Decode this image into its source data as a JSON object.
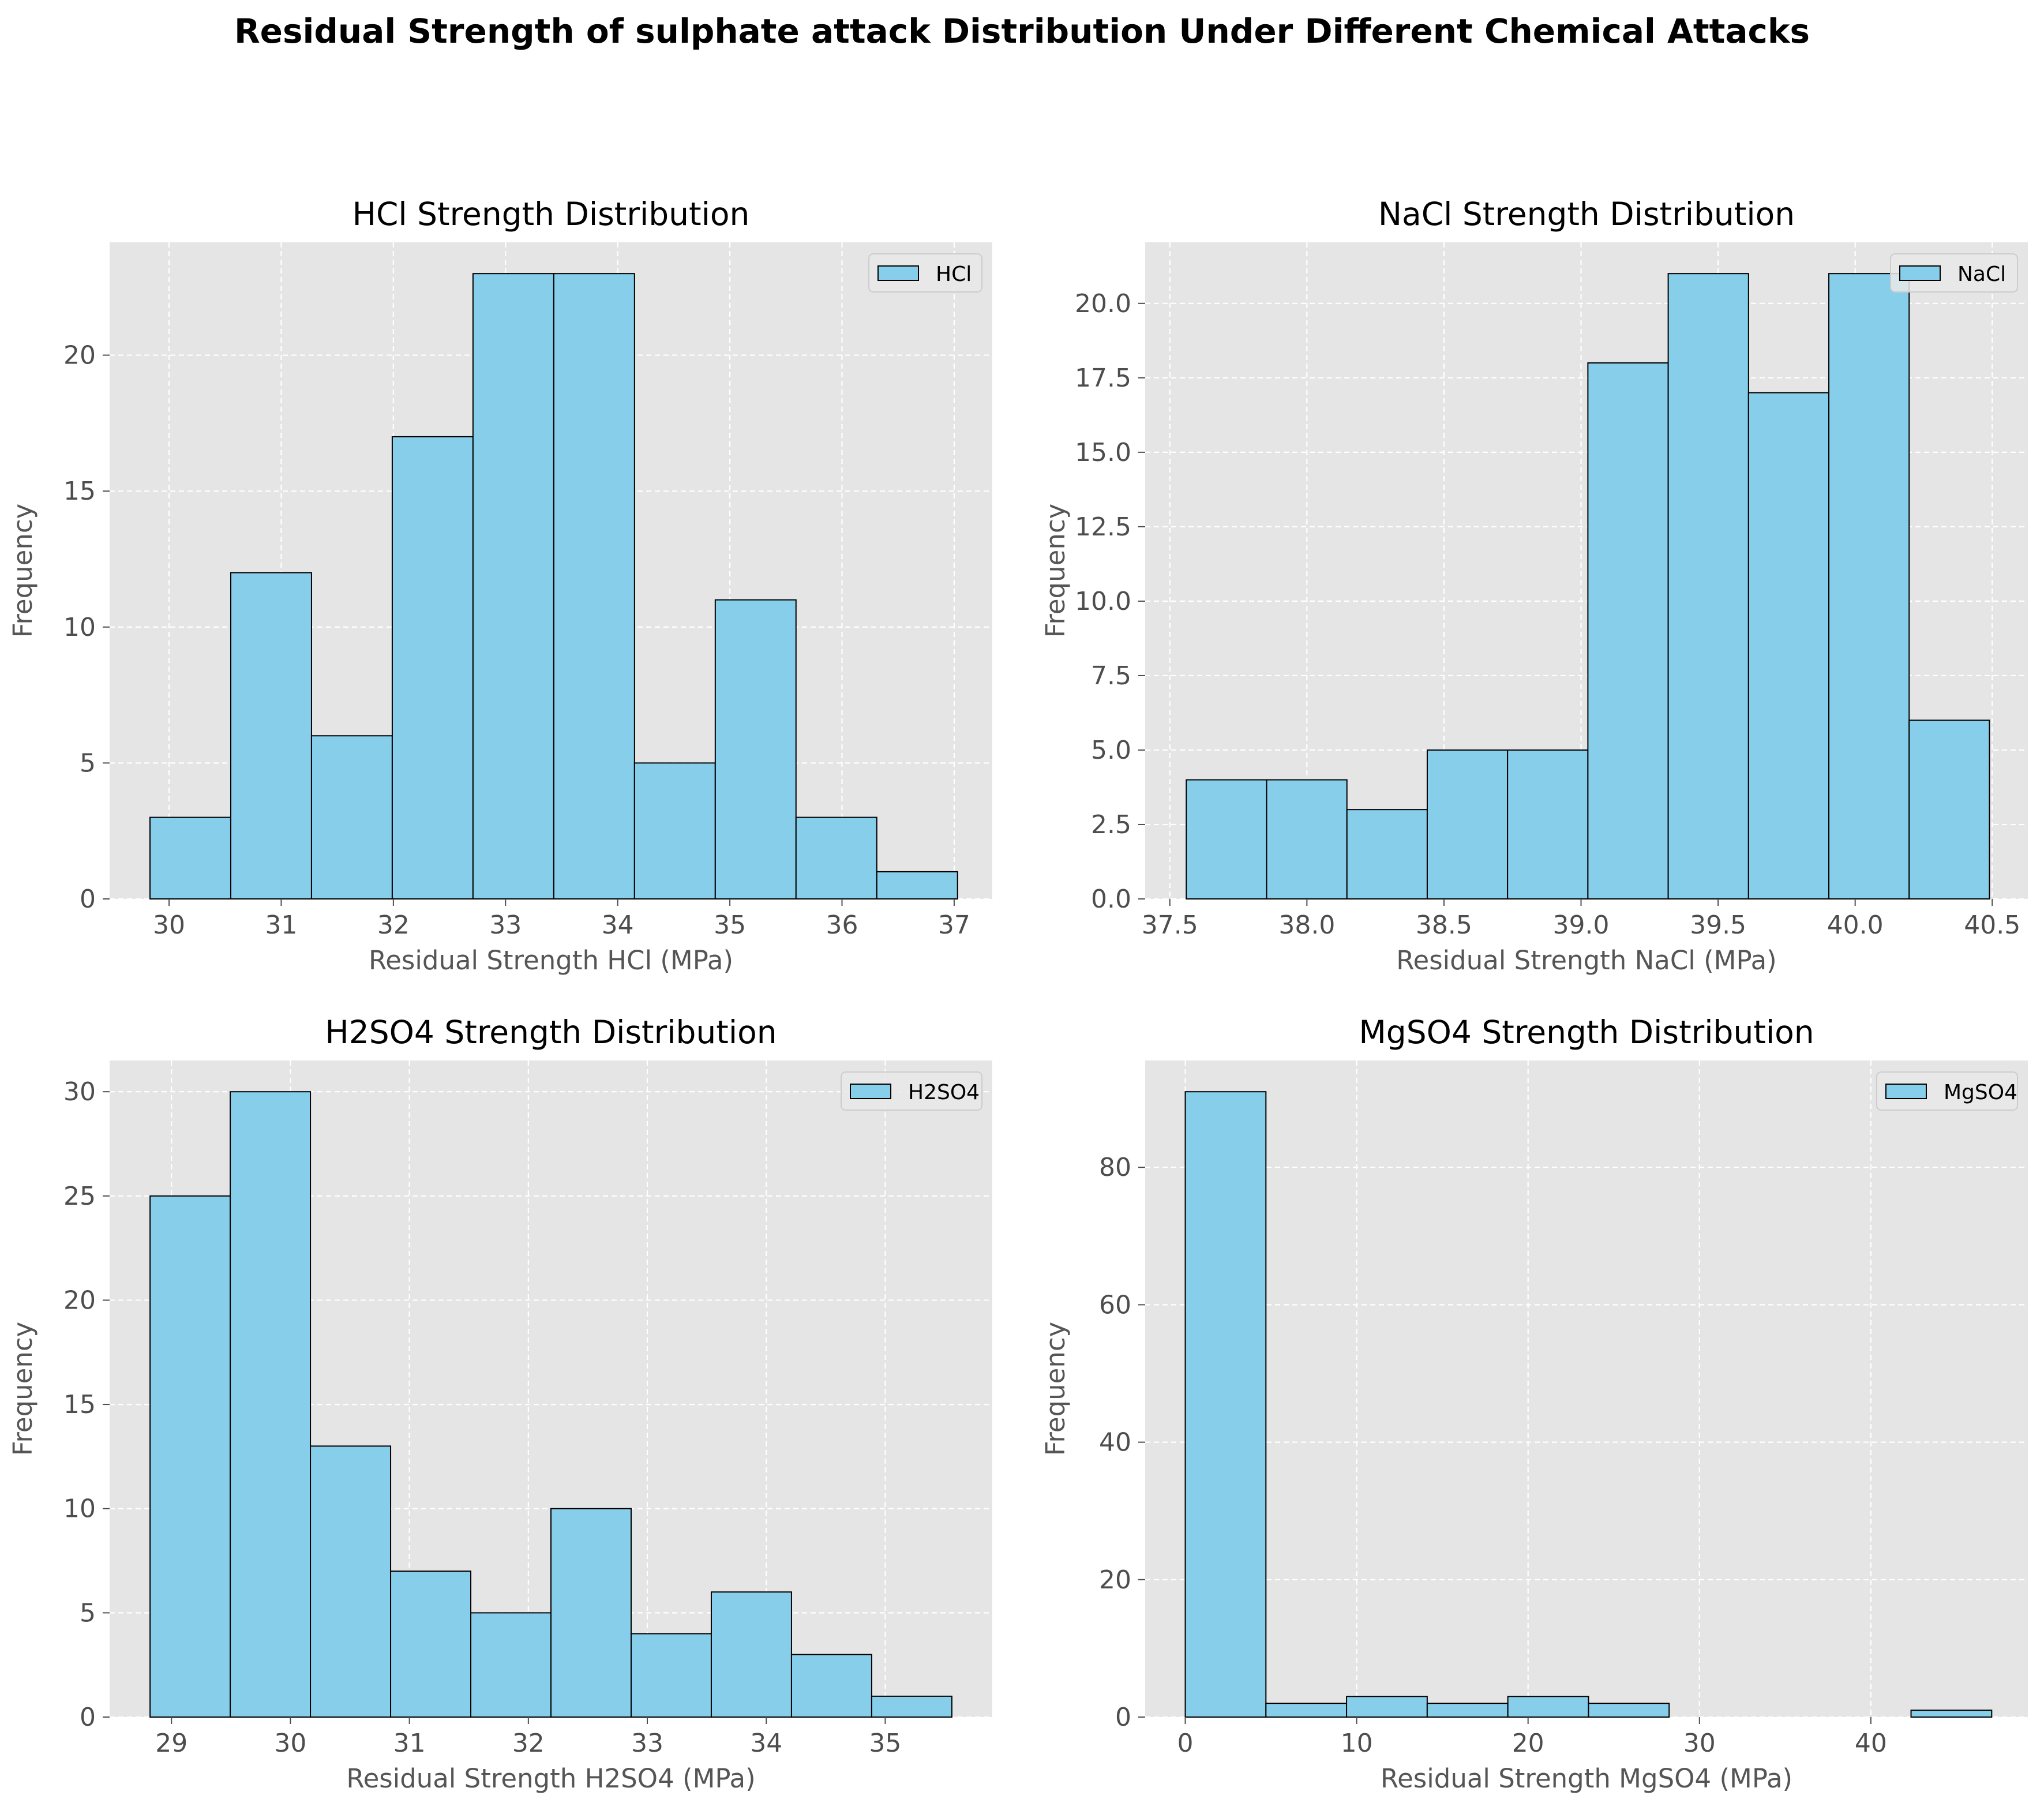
{
  "figure": {
    "title": "Residual Strength of sulphate attack Distribution Under Different Chemical Attacks"
  },
  "colors": {
    "bar_fill": "#87CEEB",
    "bar_edge": "#000000",
    "axes_bg": "#E5E5E5",
    "grid": "#FFFFFF"
  },
  "chart_data": [
    {
      "type": "bar",
      "subtype": "histogram",
      "title": "HCl Strength Distribution",
      "xlabel": "Residual Strength HCl (MPa)",
      "ylabel": "Frequency",
      "legend": [
        "HCl"
      ],
      "legend_position": "top-right",
      "grid": true,
      "xlim": [
        29.47,
        37.34
      ],
      "ylim": [
        0,
        24.15
      ],
      "xticks": [
        30,
        31,
        32,
        33,
        34,
        35,
        36,
        37
      ],
      "yticks": [
        0,
        5,
        10,
        15,
        20
      ],
      "bin_edges": [
        29.83,
        30.55,
        31.27,
        31.99,
        32.71,
        33.43,
        34.15,
        34.87,
        35.59,
        36.31,
        37.03
      ],
      "counts": [
        3,
        12,
        6,
        17,
        23,
        23,
        5,
        11,
        3,
        1
      ]
    },
    {
      "type": "bar",
      "subtype": "histogram",
      "title": "NaCl Strength Distribution",
      "xlabel": "Residual Strength NaCl (MPa)",
      "ylabel": "Frequency",
      "legend": [
        "NaCl"
      ],
      "legend_position": "top-right",
      "grid": true,
      "xlim": [
        37.41,
        40.63
      ],
      "ylim": [
        0,
        22.05
      ],
      "xticks": [
        37.5,
        38.0,
        38.5,
        39.0,
        39.5,
        40.0,
        40.5
      ],
      "yticks": [
        0.0,
        2.5,
        5.0,
        7.5,
        10.0,
        12.5,
        15.0,
        17.5,
        20.0
      ],
      "bin_edges": [
        37.56,
        37.853,
        38.146,
        38.439,
        38.732,
        39.025,
        39.318,
        39.611,
        39.904,
        40.197,
        40.49
      ],
      "counts": [
        4,
        4,
        3,
        5,
        5,
        18,
        21,
        17,
        21,
        6
      ]
    },
    {
      "type": "bar",
      "subtype": "histogram",
      "title": "H2SO4 Strength Distribution",
      "xlabel": "Residual Strength H2SO4 (MPa)",
      "ylabel": "Frequency",
      "legend": [
        "H2SO4"
      ],
      "legend_position": "top-right",
      "grid": true,
      "xlim": [
        28.48,
        35.9
      ],
      "ylim": [
        0,
        31.5
      ],
      "xticks": [
        29,
        30,
        31,
        32,
        33,
        34,
        35
      ],
      "yticks": [
        0,
        5,
        10,
        15,
        20,
        25,
        30
      ],
      "bin_edges": [
        28.82,
        29.494,
        30.168,
        30.842,
        31.516,
        32.19,
        32.864,
        33.538,
        34.212,
        34.886,
        35.56
      ],
      "counts": [
        25,
        30,
        13,
        7,
        5,
        10,
        4,
        6,
        3,
        1
      ]
    },
    {
      "type": "bar",
      "subtype": "histogram",
      "title": "MgSO4 Strength Distribution",
      "xlabel": "Residual Strength MgSO4 (MPa)",
      "ylabel": "Frequency",
      "legend": [
        "MgSO4"
      ],
      "legend_position": "top-right",
      "grid": true,
      "xlim": [
        -2.34,
        49.16
      ],
      "ylim": [
        0,
        95.55
      ],
      "xticks": [
        0,
        10,
        20,
        30,
        40
      ],
      "yticks": [
        0,
        20,
        40,
        60,
        80
      ],
      "bin_edges": [
        0.0,
        4.705,
        9.41,
        14.115,
        18.82,
        23.525,
        28.23,
        32.935,
        37.64,
        42.345,
        47.05
      ],
      "counts": [
        91,
        2,
        3,
        2,
        3,
        2,
        0,
        0,
        0,
        1
      ]
    }
  ]
}
